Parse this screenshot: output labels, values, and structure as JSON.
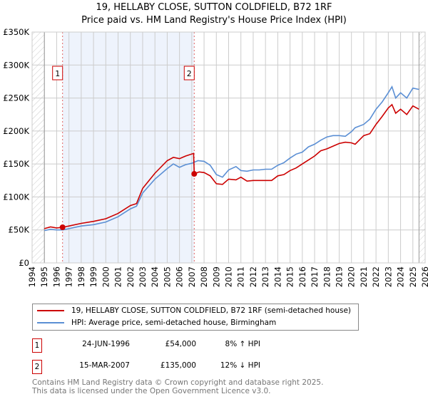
{
  "title_line1": "19, HELLABY CLOSE, SUTTON COLDFIELD, B72 1RF",
  "title_line2": "Price paid vs. HM Land Registry's House Price Index (HPI)",
  "legend": {
    "property": "19, HELLABY CLOSE, SUTTON COLDFIELD, B72 1RF (semi-detached house)",
    "hpi": "HPI: Average price, semi-detached house, Birmingham"
  },
  "sales": [
    {
      "num": "1",
      "date": "24-JUN-1996",
      "price": "£54,000",
      "hpi": "8% ↑ HPI"
    },
    {
      "num": "2",
      "date": "15-MAR-2007",
      "price": "£135,000",
      "hpi": "12% ↓ HPI"
    }
  ],
  "footer_line1": "Contains HM Land Registry data © Crown copyright and database right 2025.",
  "footer_line2": "This data is licensed under the Open Government Licence v3.0.",
  "colors": {
    "property": "#cc0000",
    "hpi": "#5b8fd4",
    "shade": "#eef3fc",
    "grid": "#cccccc"
  },
  "chart_data": {
    "type": "line",
    "xlim": [
      1994,
      2026
    ],
    "ylim": [
      0,
      350000
    ],
    "xticks": [
      "1994",
      "1995",
      "1996",
      "1997",
      "1998",
      "1999",
      "2000",
      "2001",
      "2002",
      "2003",
      "2004",
      "2005",
      "2006",
      "2007",
      "2008",
      "2009",
      "2010",
      "2011",
      "2012",
      "2013",
      "2014",
      "2015",
      "2016",
      "2017",
      "2018",
      "2019",
      "2020",
      "2021",
      "2022",
      "2023",
      "2024",
      "2025",
      "2026"
    ],
    "yticks": [
      {
        "v": 0,
        "label": "£0"
      },
      {
        "v": 50000,
        "label": "£50K"
      },
      {
        "v": 100000,
        "label": "£100K"
      },
      {
        "v": 150000,
        "label": "£150K"
      },
      {
        "v": 200000,
        "label": "£200K"
      },
      {
        "v": 250000,
        "label": "£250K"
      },
      {
        "v": 300000,
        "label": "£300K"
      },
      {
        "v": 350000,
        "label": "£350K"
      }
    ],
    "sale_points": [
      {
        "x": 1996.48,
        "y": 54000,
        "label": "1"
      },
      {
        "x": 2007.2,
        "y": 135000,
        "label": "2"
      }
    ],
    "series": [
      {
        "name": "property",
        "x": [
          1995,
          1995.5,
          1996,
          1996.48,
          1997,
          1998,
          1999,
          2000,
          2001,
          2002,
          2002.5,
          2003,
          2004,
          2005,
          2005.5,
          2006,
          2006.5,
          2007.15,
          2007.2,
          2007.6,
          2008,
          2008.5,
          2009,
          2009.5,
          2010,
          2010.6,
          2011,
          2011.5,
          2012,
          2012.5,
          2013,
          2013.5,
          2014,
          2014.5,
          2015,
          2015.5,
          2016,
          2016.5,
          2017,
          2017.5,
          2018,
          2018.5,
          2019,
          2019.5,
          2020,
          2020.3,
          2021,
          2021.5,
          2022,
          2022.5,
          2023,
          2023.3,
          2023.6,
          2024,
          2024.5,
          2025,
          2025.5
        ],
        "y": [
          52000,
          54500,
          53000,
          54000,
          56000,
          60000,
          63000,
          67000,
          75000,
          87000,
          90000,
          113000,
          136000,
          155000,
          160000,
          158000,
          162000,
          166000,
          135000,
          138000,
          137000,
          132000,
          120000,
          119000,
          127000,
          126000,
          130000,
          124000,
          125000,
          125000,
          125000,
          125000,
          132000,
          134000,
          140000,
          144000,
          150000,
          156000,
          162000,
          170000,
          173000,
          177000,
          181000,
          183000,
          182000,
          180000,
          193000,
          196000,
          210000,
          222000,
          235000,
          240000,
          227000,
          233000,
          225000,
          238000,
          233000
        ]
      },
      {
        "name": "hpi",
        "x": [
          1995,
          1995.5,
          1996,
          1996.48,
          1997,
          1998,
          1999,
          2000,
          2001,
          2002,
          2002.5,
          2003,
          2004,
          2005,
          2005.5,
          2006,
          2006.5,
          2007,
          2007.5,
          2008,
          2008.5,
          2009,
          2009.5,
          2010,
          2010.6,
          2011,
          2011.5,
          2012,
          2012.5,
          2013,
          2013.5,
          2014,
          2014.5,
          2015,
          2015.5,
          2016,
          2016.5,
          2017,
          2017.5,
          2018,
          2018.5,
          2019,
          2019.5,
          2020,
          2020.3,
          2021,
          2021.5,
          2022,
          2022.5,
          2023,
          2023.3,
          2023.6,
          2024,
          2024.5,
          2025,
          2025.5
        ],
        "y": [
          49000,
          51000,
          50000,
          50000,
          52000,
          56000,
          58000,
          62000,
          70000,
          82000,
          86000,
          106000,
          127000,
          143000,
          150000,
          145000,
          149000,
          151000,
          155000,
          154000,
          148000,
          134000,
          130000,
          141000,
          146000,
          140000,
          139000,
          141000,
          141000,
          142000,
          142000,
          148000,
          152000,
          159000,
          165000,
          168000,
          176000,
          180000,
          186000,
          191000,
          193000,
          193000,
          192000,
          199000,
          205000,
          210000,
          218000,
          233000,
          244000,
          258000,
          267000,
          250000,
          258000,
          250000,
          265000,
          263000
        ]
      }
    ]
  }
}
